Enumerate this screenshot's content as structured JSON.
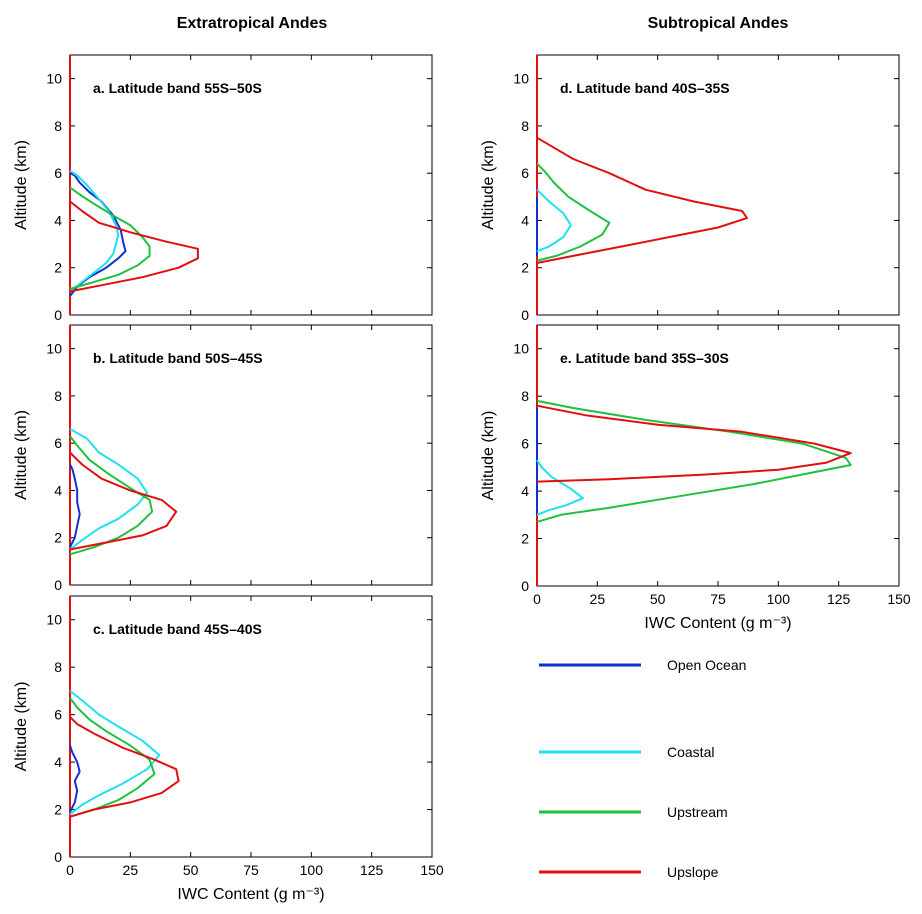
{
  "figure": {
    "column_titles": [
      "Extratropical Andes",
      "Subtropical Andes"
    ]
  },
  "legend": [
    {
      "name": "Open Ocean",
      "color": "#1030d0"
    },
    {
      "name": "Coastal",
      "color": "#20e0f0"
    },
    {
      "name": "Upstream",
      "color": "#20c040"
    },
    {
      "name": "Upslope",
      "color": "#e01010"
    }
  ],
  "chart_data": [
    {
      "type": "line",
      "title": "a. Latitude band 55S–50S",
      "xlabel": "",
      "ylabel": "Altitude (km)",
      "xlim": [
        0,
        150
      ],
      "ylim": [
        0,
        11
      ],
      "xticks": [
        0,
        25,
        50,
        75,
        100,
        125,
        150
      ],
      "yticks": [
        0,
        2,
        4,
        6,
        8,
        10
      ],
      "series": [
        {
          "name": "Open Ocean",
          "color": "#1030d0",
          "points": [
            [
              0,
              0.8
            ],
            [
              3,
              1.2
            ],
            [
              8,
              1.6
            ],
            [
              15,
              2.0
            ],
            [
              20,
              2.4
            ],
            [
              23,
              2.7
            ],
            [
              22,
              3.1
            ],
            [
              21,
              3.6
            ],
            [
              18,
              4.2
            ],
            [
              13,
              4.8
            ],
            [
              8,
              5.2
            ],
            [
              4,
              5.6
            ],
            [
              2,
              5.9
            ],
            [
              0,
              6.0
            ]
          ]
        },
        {
          "name": "Coastal",
          "color": "#20e0f0",
          "points": [
            [
              0,
              1.0
            ],
            [
              5,
              1.4
            ],
            [
              10,
              1.8
            ],
            [
              15,
              2.2
            ],
            [
              18,
              2.6
            ],
            [
              19,
              3.0
            ],
            [
              20,
              3.4
            ],
            [
              19,
              3.8
            ],
            [
              16,
              4.4
            ],
            [
              12,
              4.9
            ],
            [
              7,
              5.5
            ],
            [
              3,
              5.9
            ],
            [
              0,
              6.1
            ]
          ]
        },
        {
          "name": "Upstream",
          "color": "#20c040",
          "points": [
            [
              0,
              1.1
            ],
            [
              10,
              1.4
            ],
            [
              20,
              1.7
            ],
            [
              28,
              2.1
            ],
            [
              33,
              2.5
            ],
            [
              33,
              2.9
            ],
            [
              30,
              3.3
            ],
            [
              25,
              3.8
            ],
            [
              18,
              4.2
            ],
            [
              10,
              4.7
            ],
            [
              4,
              5.1
            ],
            [
              0,
              5.4
            ]
          ]
        },
        {
          "name": "Upslope",
          "color": "#e01010",
          "points": [
            [
              0,
              1.0
            ],
            [
              15,
              1.3
            ],
            [
              30,
              1.6
            ],
            [
              45,
              2.0
            ],
            [
              53,
              2.4
            ],
            [
              53,
              2.8
            ],
            [
              40,
              3.1
            ],
            [
              25,
              3.5
            ],
            [
              12,
              3.9
            ],
            [
              5,
              4.4
            ],
            [
              0,
              4.8
            ]
          ]
        }
      ]
    },
    {
      "type": "line",
      "title": "b. Latitude band 50S–45S",
      "xlabel": "",
      "ylabel": "Altitude (km)",
      "xlim": [
        0,
        150
      ],
      "ylim": [
        0,
        11
      ],
      "xticks": [
        0,
        25,
        50,
        75,
        100,
        125,
        150
      ],
      "yticks": [
        0,
        2,
        4,
        6,
        8,
        10
      ],
      "series": [
        {
          "name": "Open Ocean",
          "color": "#1030d0",
          "points": [
            [
              0,
              1.6
            ],
            [
              2,
              2.0
            ],
            [
              3,
              2.5
            ],
            [
              4,
              3.0
            ],
            [
              3,
              3.5
            ],
            [
              3,
              4.0
            ],
            [
              2,
              4.5
            ],
            [
              1,
              4.9
            ],
            [
              0,
              5.1
            ]
          ]
        },
        {
          "name": "Coastal",
          "color": "#20e0f0",
          "points": [
            [
              0,
              1.5
            ],
            [
              5,
              1.9
            ],
            [
              12,
              2.4
            ],
            [
              20,
              2.8
            ],
            [
              28,
              3.4
            ],
            [
              32,
              3.9
            ],
            [
              28,
              4.5
            ],
            [
              20,
              5.1
            ],
            [
              12,
              5.6
            ],
            [
              7,
              6.2
            ],
            [
              0,
              6.6
            ]
          ]
        },
        {
          "name": "Upstream",
          "color": "#20c040",
          "points": [
            [
              0,
              1.3
            ],
            [
              10,
              1.6
            ],
            [
              20,
              2.0
            ],
            [
              28,
              2.5
            ],
            [
              34,
              3.1
            ],
            [
              33,
              3.6
            ],
            [
              25,
              4.1
            ],
            [
              16,
              4.7
            ],
            [
              8,
              5.3
            ],
            [
              3,
              5.9
            ],
            [
              0,
              6.3
            ]
          ]
        },
        {
          "name": "Upslope",
          "color": "#e01010",
          "points": [
            [
              0,
              1.5
            ],
            [
              15,
              1.8
            ],
            [
              30,
              2.1
            ],
            [
              40,
              2.5
            ],
            [
              44,
              3.1
            ],
            [
              38,
              3.6
            ],
            [
              25,
              4.0
            ],
            [
              13,
              4.5
            ],
            [
              5,
              5.1
            ],
            [
              0,
              5.6
            ]
          ]
        }
      ]
    },
    {
      "type": "line",
      "title": "c. Latitude band 45S–40S",
      "xlabel": "IWC Content (g m⁻³)",
      "ylabel": "Altitude (km)",
      "xlim": [
        0,
        150
      ],
      "ylim": [
        0,
        11
      ],
      "xticks": [
        0,
        25,
        50,
        75,
        100,
        125,
        150
      ],
      "yticks": [
        0,
        2,
        4,
        6,
        8,
        10
      ],
      "series": [
        {
          "name": "Open Ocean",
          "color": "#1030d0",
          "points": [
            [
              0,
              1.9
            ],
            [
              2,
              2.3
            ],
            [
              3,
              2.8
            ],
            [
              2,
              3.2
            ],
            [
              4,
              3.6
            ],
            [
              3,
              4.0
            ],
            [
              1,
              4.4
            ],
            [
              0,
              4.7
            ]
          ]
        },
        {
          "name": "Coastal",
          "color": "#20e0f0",
          "points": [
            [
              0,
              1.8
            ],
            [
              5,
              2.2
            ],
            [
              12,
              2.6
            ],
            [
              22,
              3.1
            ],
            [
              32,
              3.7
            ],
            [
              37,
              4.3
            ],
            [
              30,
              4.9
            ],
            [
              20,
              5.5
            ],
            [
              12,
              6.0
            ],
            [
              5,
              6.6
            ],
            [
              0,
              7.0
            ]
          ]
        },
        {
          "name": "Upstream",
          "color": "#20c040",
          "points": [
            [
              0,
              1.7
            ],
            [
              10,
              2.0
            ],
            [
              20,
              2.4
            ],
            [
              28,
              2.9
            ],
            [
              35,
              3.5
            ],
            [
              33,
              4.1
            ],
            [
              25,
              4.7
            ],
            [
              15,
              5.3
            ],
            [
              8,
              5.8
            ],
            [
              3,
              6.3
            ],
            [
              0,
              6.7
            ]
          ]
        },
        {
          "name": "Upslope",
          "color": "#e01010",
          "points": [
            [
              0,
              1.7
            ],
            [
              10,
              2.0
            ],
            [
              25,
              2.3
            ],
            [
              38,
              2.7
            ],
            [
              45,
              3.2
            ],
            [
              44,
              3.7
            ],
            [
              35,
              4.1
            ],
            [
              22,
              4.6
            ],
            [
              10,
              5.2
            ],
            [
              3,
              5.6
            ],
            [
              0,
              5.9
            ]
          ]
        }
      ]
    },
    {
      "type": "line",
      "title": "d. Latitude band 40S–35S",
      "xlabel": "",
      "ylabel": "Altitude (km)",
      "xlim": [
        0,
        150
      ],
      "ylim": [
        0,
        11
      ],
      "xticks": [
        0,
        25,
        50,
        75,
        100,
        125,
        150
      ],
      "yticks": [
        0,
        2,
        4,
        6,
        8,
        10
      ],
      "series": [
        {
          "name": "Open Ocean",
          "color": "#1030d0",
          "points": [
            [
              0,
              2.5
            ],
            [
              0,
              3.0
            ],
            [
              0,
              4.0
            ],
            [
              0,
              5.0
            ]
          ]
        },
        {
          "name": "Coastal",
          "color": "#20e0f0",
          "points": [
            [
              0,
              2.7
            ],
            [
              5,
              2.9
            ],
            [
              11,
              3.3
            ],
            [
              14,
              3.8
            ],
            [
              11,
              4.3
            ],
            [
              5,
              4.8
            ],
            [
              0,
              5.3
            ]
          ]
        },
        {
          "name": "Upstream",
          "color": "#20c040",
          "points": [
            [
              0,
              2.3
            ],
            [
              8,
              2.5
            ],
            [
              18,
              2.9
            ],
            [
              27,
              3.4
            ],
            [
              30,
              3.9
            ],
            [
              22,
              4.4
            ],
            [
              13,
              5.0
            ],
            [
              7,
              5.6
            ],
            [
              3,
              6.1
            ],
            [
              0,
              6.4
            ]
          ]
        },
        {
          "name": "Upslope",
          "color": "#e01010",
          "points": [
            [
              0,
              2.2
            ],
            [
              15,
              2.5
            ],
            [
              35,
              2.9
            ],
            [
              55,
              3.3
            ],
            [
              75,
              3.7
            ],
            [
              87,
              4.1
            ],
            [
              85,
              4.4
            ],
            [
              65,
              4.8
            ],
            [
              45,
              5.3
            ],
            [
              30,
              6.0
            ],
            [
              15,
              6.6
            ],
            [
              5,
              7.2
            ],
            [
              0,
              7.5
            ]
          ]
        }
      ]
    },
    {
      "type": "line",
      "title": "e. Latitude band 35S–30S",
      "xlabel": "IWC Content (g m⁻³)",
      "ylabel": "Altitude (km)",
      "xlim": [
        0,
        150
      ],
      "ylim": [
        0,
        11
      ],
      "xticks": [
        0,
        25,
        50,
        75,
        100,
        125,
        150
      ],
      "yticks": [
        0,
        2,
        4,
        6,
        8,
        10
      ],
      "series": [
        {
          "name": "Open Ocean",
          "color": "#1030d0",
          "points": [
            [
              0,
              3.0
            ],
            [
              0,
              4.0
            ],
            [
              0,
              5.0
            ],
            [
              0,
              7.5
            ]
          ]
        },
        {
          "name": "Coastal",
          "color": "#20e0f0",
          "points": [
            [
              0,
              3.0
            ],
            [
              5,
              3.2
            ],
            [
              12,
              3.4
            ],
            [
              19,
              3.7
            ],
            [
              14,
              4.1
            ],
            [
              6,
              4.6
            ],
            [
              2,
              5.0
            ],
            [
              0,
              5.3
            ]
          ]
        },
        {
          "name": "Upstream",
          "color": "#20c040",
          "points": [
            [
              0,
              2.7
            ],
            [
              10,
              3.0
            ],
            [
              30,
              3.3
            ],
            [
              60,
              3.8
            ],
            [
              90,
              4.3
            ],
            [
              115,
              4.8
            ],
            [
              130,
              5.1
            ],
            [
              128,
              5.4
            ],
            [
              110,
              6.0
            ],
            [
              80,
              6.5
            ],
            [
              45,
              7.0
            ],
            [
              15,
              7.5
            ],
            [
              0,
              7.8
            ]
          ]
        },
        {
          "name": "Upslope",
          "color": "#e01010",
          "points": [
            [
              0,
              4.4
            ],
            [
              30,
              4.5
            ],
            [
              70,
              4.7
            ],
            [
              100,
              4.9
            ],
            [
              120,
              5.2
            ],
            [
              130,
              5.6
            ],
            [
              115,
              6.0
            ],
            [
              85,
              6.5
            ],
            [
              50,
              6.8
            ],
            [
              20,
              7.2
            ],
            [
              0,
              7.6
            ]
          ]
        }
      ]
    }
  ]
}
